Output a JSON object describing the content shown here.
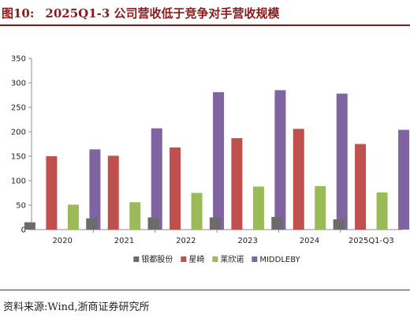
{
  "figure": {
    "label": "图10:",
    "title": "2025Q1-3 公司营收低于竞争对手营收规模",
    "source": "资料来源:Wind,浙商证券研究所"
  },
  "colors": {
    "title": "#8b1a1a",
    "rule": "#8b1a1a"
  },
  "chart_data": {
    "type": "bar",
    "title": "",
    "xlabel": "",
    "ylabel": "",
    "ylim": [
      0,
      350
    ],
    "yticks": [
      0,
      50,
      100,
      150,
      200,
      250,
      300,
      350
    ],
    "grid": false,
    "legend_position": "bottom",
    "categories": [
      "2020",
      "2021",
      "2022",
      "2023",
      "2024",
      "2025Q1-Q3"
    ],
    "series": [
      {
        "name": "银都股份",
        "color": "#6b6b6b",
        "values": [
          15,
          23,
          25,
          25,
          26,
          21
        ]
      },
      {
        "name": "星崎",
        "color": "#c0504d",
        "values": [
          150,
          151,
          168,
          187,
          206,
          175
        ]
      },
      {
        "name": "莱欣诺",
        "color": "#9bbb59",
        "values": [
          51,
          56,
          75,
          88,
          89,
          76
        ]
      },
      {
        "name": "MIDDLEBY",
        "color": "#8064a2",
        "values": [
          164,
          207,
          281,
          285,
          278,
          204
        ]
      }
    ]
  }
}
